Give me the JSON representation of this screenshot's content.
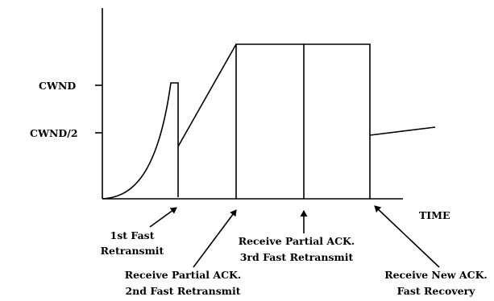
{
  "axes": {
    "y_labels": [
      "CWND",
      "CWND/2"
    ],
    "x_label": "TIME"
  },
  "events": [
    {
      "id": "e1",
      "lines": [
        "1st Fast",
        "Retransmit"
      ]
    },
    {
      "id": "e2",
      "lines": [
        "Receive Partial ACK.",
        "2nd Fast Retransmit"
      ]
    },
    {
      "id": "e3",
      "lines": [
        "Receive Partial ACK.",
        "3rd Fast Retransmit"
      ]
    },
    {
      "id": "e4",
      "lines": [
        "Receive New ACK.",
        "Fast Recovery"
      ]
    }
  ]
}
